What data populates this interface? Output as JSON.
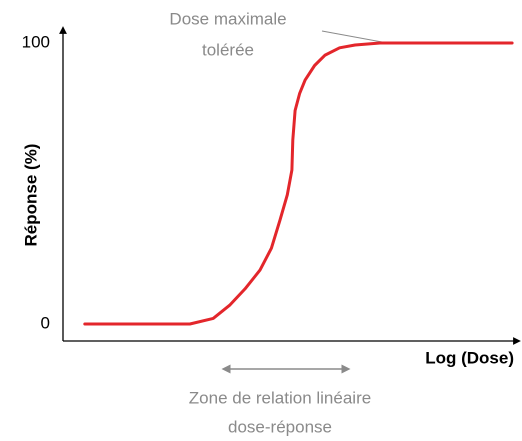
{
  "chart_data": {
    "type": "line",
    "x_label": "Log (Dose)",
    "y_label": "Réponse (%)",
    "x": [
      4.8,
      27.9,
      33,
      36.7,
      40,
      43.3,
      45.8,
      47.7,
      49.3,
      50.3,
      50.5,
      51,
      52,
      53.2,
      55.3,
      57.6,
      60.8,
      64.2,
      69.7,
      98.7
    ],
    "series": [
      {
        "name": null,
        "color": "#e3262b",
        "values": [
          0,
          0,
          2,
          6.8,
          12.5,
          19.2,
          27,
          37,
          46,
          54.8,
          65.5,
          76,
          82,
          86.8,
          92,
          95.7,
          98.3,
          99.3,
          100,
          100
        ]
      }
    ],
    "xlim": [
      0,
      100
    ],
    "ylim": [
      -6,
      103
    ],
    "yticks": [
      0,
      100
    ],
    "grid": false,
    "annotations": [
      [
        "Dose maximale",
        "tolérée"
      ],
      [
        "Zone de relation linéaire",
        "dose-réponse"
      ]
    ]
  }
}
